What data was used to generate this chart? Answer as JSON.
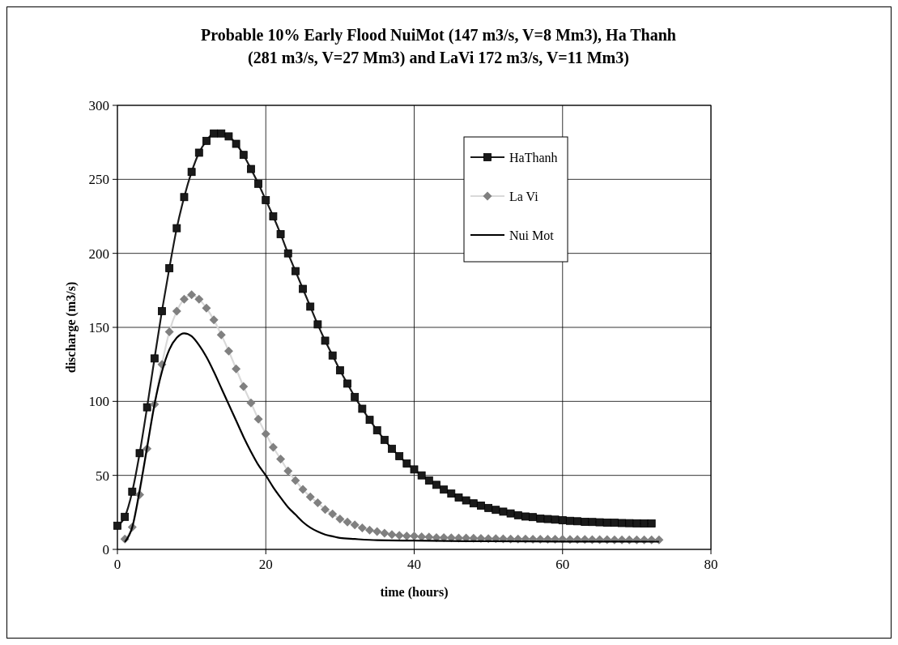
{
  "chart_data": {
    "type": "line",
    "title": "Probable 10% Early Flood NuiMot (147 m3/s, V=8 Mm3), Ha Thanh (281 m3/s, V=27 Mm3) and LaVi 172 m3/s, V=11 Mm3)",
    "xlabel": "time (hours)",
    "ylabel": "discharge (m3/s)",
    "xlim": [
      0,
      80
    ],
    "xticks": [
      0,
      20,
      40,
      60,
      80
    ],
    "ylim": [
      0,
      300
    ],
    "yticks": [
      0,
      50,
      100,
      150,
      200,
      250,
      300
    ],
    "grid": true,
    "legend": "top right",
    "series": [
      {
        "name": "HaThanh",
        "color": "#1a1a1a",
        "marker": "square",
        "x": [
          0,
          1,
          2,
          3,
          4,
          5,
          6,
          7,
          8,
          9,
          10,
          11,
          12,
          13,
          14,
          15,
          16,
          17,
          18,
          19,
          20,
          21,
          22,
          23,
          24,
          25,
          26,
          27,
          28,
          29,
          30,
          31,
          32,
          33,
          34,
          35,
          36,
          37,
          38,
          39,
          40,
          41,
          42,
          43,
          44,
          45,
          46,
          47,
          48,
          49,
          50,
          51,
          52,
          53,
          54,
          55,
          56,
          57,
          58,
          59,
          60,
          61,
          62,
          63,
          64,
          65,
          66,
          67,
          68,
          69,
          70,
          71,
          72
        ],
        "values": [
          16,
          22,
          39,
          65,
          96,
          129,
          161,
          190,
          217,
          238,
          255,
          268,
          276,
          281,
          281,
          279,
          274,
          266.5,
          257,
          247,
          236,
          225,
          213,
          200,
          188,
          176,
          164,
          152,
          141,
          131,
          121,
          112,
          103,
          95,
          87.5,
          80.5,
          74,
          68,
          63,
          58,
          54,
          50,
          46.5,
          43.6,
          40.4,
          37.7,
          35.1,
          33.1,
          31.1,
          29.6,
          28,
          26.7,
          25.5,
          24.3,
          23.1,
          22.2,
          21.8,
          20.8,
          20.5,
          20.1,
          19.7,
          19.3,
          19,
          18.6,
          18.5,
          18.3,
          18.1,
          18,
          17.8,
          17.7,
          17.6,
          17.5,
          17.5
        ]
      },
      {
        "name": "La Vi",
        "color": "#808080",
        "marker": "diamond",
        "x": [
          1,
          2,
          3,
          4,
          5,
          6,
          7,
          8,
          9,
          10,
          11,
          12,
          13,
          14,
          15,
          16,
          17,
          18,
          19,
          20,
          21,
          22,
          23,
          24,
          25,
          26,
          27,
          28,
          29,
          30,
          31,
          32,
          33,
          34,
          35,
          36,
          37,
          38,
          39,
          40,
          41,
          42,
          43,
          44,
          45,
          46,
          47,
          48,
          49,
          50,
          51,
          52,
          53,
          54,
          55,
          56,
          57,
          58,
          59,
          60,
          61,
          62,
          63,
          64,
          65,
          66,
          67,
          68,
          69,
          70,
          71,
          72,
          73
        ],
        "values": [
          7,
          15,
          37,
          68,
          98,
          125,
          147,
          161,
          169,
          172,
          169,
          163,
          155,
          145,
          134,
          122,
          110,
          99,
          88,
          78,
          69,
          61,
          53,
          46.5,
          40.5,
          35.5,
          31.5,
          27,
          24,
          20.5,
          18.5,
          16.5,
          14.5,
          13,
          12,
          11,
          10,
          9.5,
          9,
          9,
          8.5,
          8.3,
          8,
          8,
          7.8,
          7.7,
          7.6,
          7.5,
          7.4,
          7.3,
          7.2,
          7.1,
          7,
          7,
          7,
          6.9,
          6.9,
          6.8,
          6.8,
          6.8,
          6.7,
          6.7,
          6.7,
          6.6,
          6.6,
          6.6,
          6.5,
          6.5,
          6.5,
          6.5,
          6.5,
          6.5,
          6.5
        ]
      },
      {
        "name": "Nui Mot",
        "color": "#000000",
        "marker": "none",
        "x": [
          1,
          2,
          3,
          4,
          5,
          6,
          7,
          8,
          9,
          10,
          11,
          12,
          13,
          14,
          15,
          16,
          17,
          18,
          19,
          20,
          21,
          22,
          23,
          24,
          25,
          26,
          27,
          28,
          29,
          30,
          32,
          35,
          40,
          50,
          60,
          73
        ],
        "values": [
          5,
          15,
          40,
          69,
          98,
          120,
          135,
          143,
          146,
          144,
          138,
          130,
          120,
          109,
          98,
          87,
          76,
          66,
          57,
          50,
          42,
          35,
          28.5,
          23.5,
          18.5,
          14.7,
          12,
          10,
          8.8,
          7.7,
          7,
          6.2,
          5.9,
          5.5,
          5.3,
          5.2
        ]
      }
    ]
  }
}
